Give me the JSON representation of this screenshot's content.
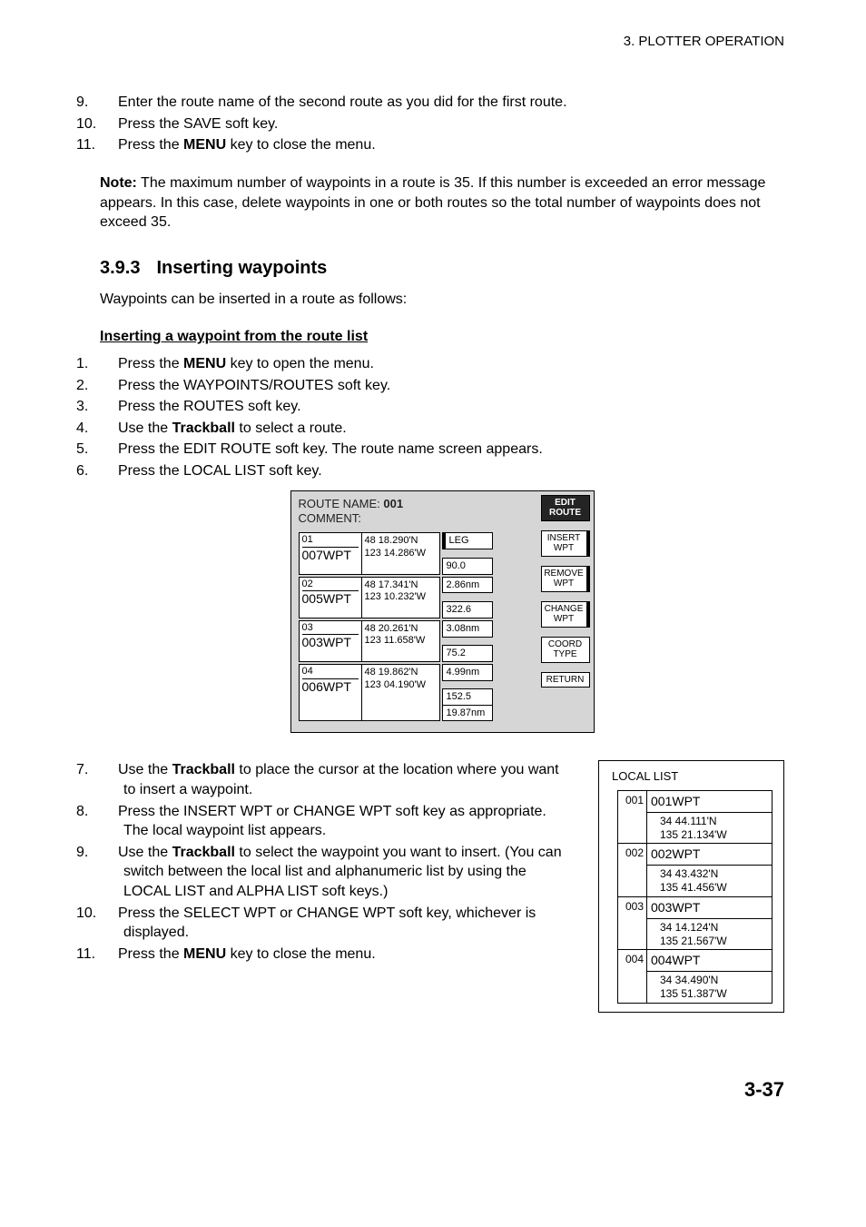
{
  "running_head": "3.  PLOTTER  OPERATION",
  "intro_list": [
    {
      "n": "9.",
      "text": "Enter the route name of the second route as you did for the first route."
    },
    {
      "n": "10.",
      "text": "Press the SAVE soft key."
    },
    {
      "n": "11.",
      "text_before": "Press the ",
      "bold": "MENU",
      "text_after": " key to close the menu."
    }
  ],
  "note": {
    "label": "Note:",
    "text": " The maximum number of waypoints in a route is 35. If this number is exceeded an error message appears. In this case, delete waypoints in one or both routes so the total number of waypoints does not exceed 35."
  },
  "section": {
    "num": "3.9.3",
    "title": "Inserting waypoints"
  },
  "section_intro": "Waypoints can be inserted in a route as follows:",
  "subhead_a": "Inserting a waypoint from the route list",
  "list_a": [
    {
      "n": "1.",
      "text_before": "Press the ",
      "bold": "MENU",
      "text_after": " key to open the menu."
    },
    {
      "n": "2.",
      "text": "Press the WAYPOINTS/ROUTES soft key."
    },
    {
      "n": "3.",
      "text": "Press the ROUTES soft key."
    },
    {
      "n": "4.",
      "text_before": "Use the ",
      "bold": "Trackball",
      "text_after": " to select a route."
    },
    {
      "n": "5.",
      "text": "Press the EDIT ROUTE soft key. The route name screen appears."
    },
    {
      "n": "6.",
      "text": "Press the LOCAL LIST soft key."
    }
  ],
  "route_editor": {
    "name_label": "ROUTE NAME: ",
    "name_value": "001",
    "comment_label": "COMMENT:",
    "leg_label": "LEG",
    "rows": [
      {
        "seq": "01",
        "name": "007WPT",
        "lat": "48 18.290'N",
        "lon": "123 14.286'W",
        "leg1": "90.0",
        "leg2": "2.86nm"
      },
      {
        "seq": "02",
        "name": "005WPT",
        "lat": "48 17.341'N",
        "lon": "123 10.232'W",
        "leg1": "322.6",
        "leg2": "3.08nm"
      },
      {
        "seq": "03",
        "name": "003WPT",
        "lat": "48 20.261'N",
        "lon": "123 11.658'W",
        "leg1": "75.2",
        "leg2": "4.99nm"
      },
      {
        "seq": "04",
        "name": "006WPT",
        "lat": "48 19.862'N",
        "lon": "123 04.190'W",
        "leg1": "152.5",
        "leg2": "19.87nm"
      }
    ],
    "softkeys": [
      {
        "line1": "EDIT",
        "line2": "ROUTE",
        "dark": true
      },
      {
        "line1": "INSERT",
        "line2": "WPT",
        "shadow": true
      },
      {
        "line1": "REMOVE",
        "line2": "WPT",
        "shadow": true
      },
      {
        "line1": "CHANGE",
        "line2": "WPT",
        "shadow": true
      },
      {
        "line1": "COORD",
        "line2": "TYPE"
      },
      {
        "line1": "RETURN",
        "line2": ""
      }
    ]
  },
  "list_b": [
    {
      "n": "7.",
      "text_before": "Use the ",
      "bold": "Trackball",
      "text_after": " to place the cursor at the location where you want to insert a waypoint."
    },
    {
      "n": "8.",
      "text": "Press the INSERT WPT or CHANGE WPT soft key as appropriate. The local waypoint list appears."
    },
    {
      "n": "9.",
      "text_before": "Use the ",
      "bold": "Trackball",
      "text_after": " to select the waypoint you want to insert. (You can switch between the local list and alphanumeric list by using the LOCAL LIST and ALPHA LIST soft keys.)"
    },
    {
      "n": "10.",
      "text": "Press the SELECT WPT or CHANGE WPT soft key, whichever is displayed."
    },
    {
      "n": "11.",
      "text_before": "Press the ",
      "bold": "MENU",
      "text_after": " key to close the menu."
    }
  ],
  "local_list": {
    "title": "LOCAL LIST",
    "items": [
      {
        "idx": "001",
        "name": "001WPT",
        "lat": "34 44.111'N",
        "lon": "135 21.134'W"
      },
      {
        "idx": "002",
        "name": "002WPT",
        "lat": "34 43.432'N",
        "lon": "135 41.456'W"
      },
      {
        "idx": "003",
        "name": "003WPT",
        "lat": "34 14.124'N",
        "lon": "135 21.567'W"
      },
      {
        "idx": "004",
        "name": "004WPT",
        "lat": "34 34.490'N",
        "lon": "135 51.387'W"
      }
    ]
  },
  "page_number": "3-37"
}
